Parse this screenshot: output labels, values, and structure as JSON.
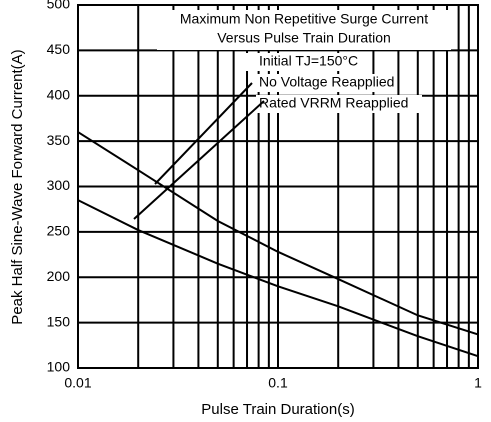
{
  "chart_data": {
    "type": "line",
    "x_label": "Pulse Train Duration(s)",
    "y_label": "Peak Half Sine-Wave Forward Current(A)",
    "annotations": [
      "Maximum Non Repetitive Surge Current",
      "Versus Pulse Train Duration",
      "Initial TJ=150°C",
      "No Voltage Reapplied",
      "Rated VRRM Reapplied"
    ],
    "x": [
      0.01,
      0.02,
      0.05,
      0.1,
      0.2,
      0.5,
      1
    ],
    "series": [
      {
        "name": "No Voltage Reapplied",
        "color": "#000000",
        "values": [
          360,
          318,
          262,
          228,
          198,
          158,
          137
        ]
      },
      {
        "name": "Rated VRRM Reapplied",
        "color": "#000000",
        "values": [
          285,
          252,
          215,
          190,
          168,
          135,
          113
        ]
      }
    ],
    "xscale": "log",
    "xlim": [
      0.01,
      1
    ],
    "xticks": [
      0.01,
      0.1,
      1
    ],
    "xminor": [
      0.02,
      0.03,
      0.04,
      0.05,
      0.06,
      0.07,
      0.08,
      0.09,
      0.2,
      0.3,
      0.4,
      0.5,
      0.6,
      0.7,
      0.8,
      0.9
    ],
    "ylim": [
      100,
      500
    ],
    "yticks": [
      100,
      150,
      200,
      250,
      300,
      350,
      400,
      450,
      500
    ],
    "grid": true
  }
}
